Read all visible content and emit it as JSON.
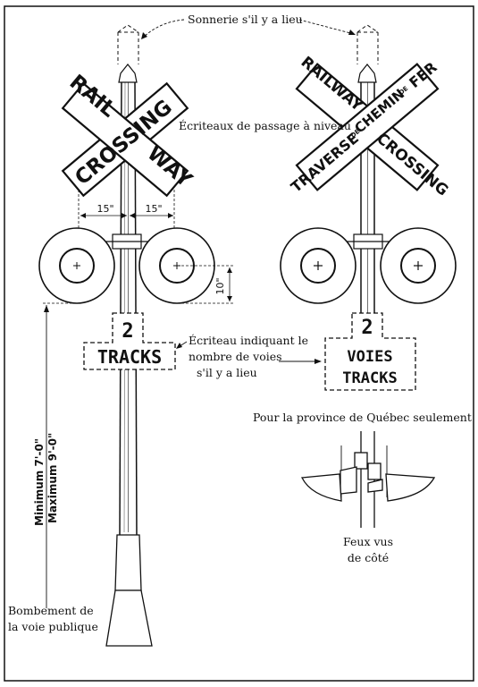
{
  "left_sign": {
    "word_rail": "RAIL",
    "word_way": "WAY",
    "word_crossing": "CROSSING",
    "dim_15_left": "15\"",
    "dim_15_right": "15\"",
    "dim_10": "10\"",
    "count_digit": "2",
    "count_word": "TRACKS",
    "height_min": "Minimum 7'-0\"",
    "height_max": "Maximum 9'-0\""
  },
  "right_sign": {
    "word_railway": "RAILWAY",
    "word_traverse": "TRAVERSE",
    "word_de_1": "DE",
    "word_chemin": "CHEMIN",
    "word_de_2": "DE",
    "word_fer": "FER",
    "word_crossing": "CROSSING",
    "count_digit": "2",
    "count_word_fr": "VOIES",
    "count_word_en": "TRACKS"
  },
  "annotations": {
    "bell": "Sonnerie s'il y a lieu",
    "crossing_signs": "Écriteaux de passage à niveau",
    "track_sign_line1": "Écriteau indiquant le",
    "track_sign_line2": "nombre de voies",
    "track_sign_line3": "s'il y a lieu",
    "quebec_only": "Pour la province de Québec seulement",
    "side_view_line1": "Feux vus",
    "side_view_line2": "de côté",
    "road_crown_line1": "Bombement de",
    "road_crown_line2": "la voie publique"
  }
}
